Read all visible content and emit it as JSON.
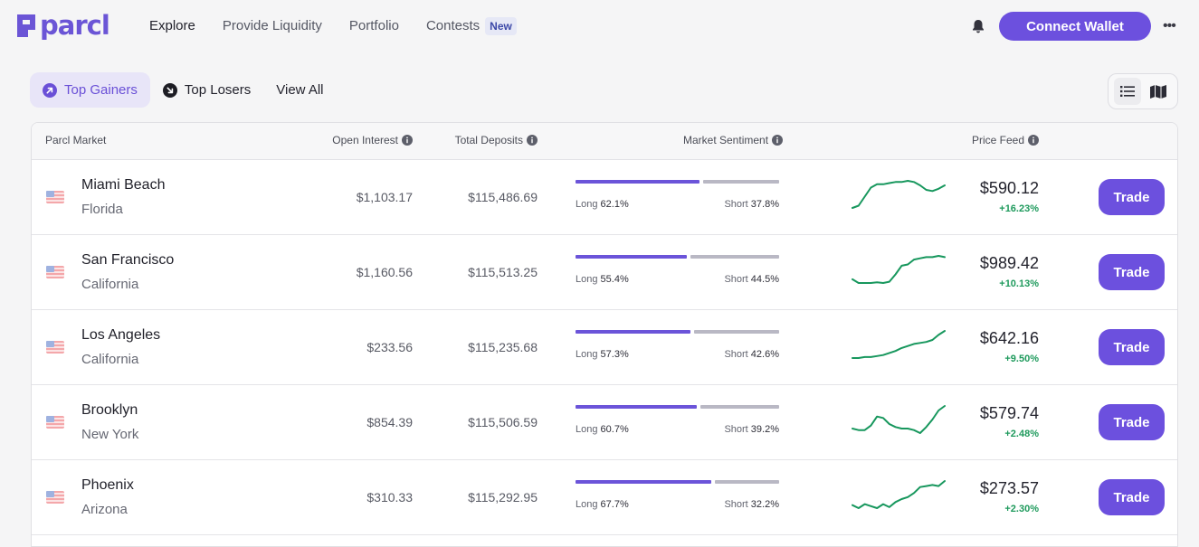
{
  "brand": {
    "name": "parcl",
    "accent": "#6c50de"
  },
  "nav": {
    "links": [
      "Explore",
      "Provide Liquidity",
      "Portfolio"
    ],
    "contests_label": "Contests",
    "contests_badge": "New",
    "connect_wallet": "Connect Wallet",
    "more_label": "•••"
  },
  "filters": {
    "top_gainers": "Top Gainers",
    "top_losers": "Top Losers",
    "view_all": "View All"
  },
  "table": {
    "headers": {
      "market": "Parcl Market",
      "open_interest": "Open Interest",
      "total_deposits": "Total Deposits",
      "sentiment": "Market Sentiment",
      "price_feed": "Price Feed"
    },
    "trade_label": "Trade",
    "long_prefix": "Long ",
    "short_prefix": "Short ",
    "rows": [
      {
        "city": "Miami Beach",
        "state": "Florida",
        "open_interest": "$1,103.17",
        "total_deposits": "$115,486.69",
        "long_pct": 62.1,
        "short_pct": 37.8,
        "long_label": "62.1%",
        "short_label": "37.8%",
        "price": "$590.12",
        "change": "+16.23%",
        "spark": [
          0,
          2,
          10,
          18,
          21,
          21,
          22,
          23,
          23,
          24,
          23,
          20,
          16,
          15,
          17,
          20
        ]
      },
      {
        "city": "San Francisco",
        "state": "California",
        "open_interest": "$1,160.56",
        "total_deposits": "$115,513.25",
        "long_pct": 55.4,
        "short_pct": 44.5,
        "long_label": "55.4%",
        "short_label": "44.5%",
        "price": "$989.42",
        "change": "+10.13%",
        "spark": [
          3,
          0,
          0,
          0,
          0.5,
          0,
          1,
          7,
          14,
          15,
          19,
          20,
          21,
          21,
          22,
          21
        ]
      },
      {
        "city": "Los Angeles",
        "state": "California",
        "open_interest": "$233.56",
        "total_deposits": "$115,235.68",
        "long_pct": 57.3,
        "short_pct": 42.6,
        "long_label": "57.3%",
        "short_label": "42.6%",
        "price": "$642.16",
        "change": "+9.50%",
        "spark": [
          0,
          0,
          1,
          1,
          2,
          3,
          5,
          7,
          10,
          12,
          14,
          15,
          16,
          18,
          23,
          27
        ]
      },
      {
        "city": "Brooklyn",
        "state": "New York",
        "open_interest": "$854.39",
        "total_deposits": "$115,506.59",
        "long_pct": 60.7,
        "short_pct": 39.2,
        "long_label": "60.7%",
        "short_label": "39.2%",
        "price": "$579.74",
        "change": "+2.48%",
        "spark": [
          8,
          7,
          7,
          10,
          16,
          15,
          11,
          9,
          8,
          8,
          7,
          5,
          9,
          14,
          20,
          23
        ]
      },
      {
        "city": "Phoenix",
        "state": "Arizona",
        "open_interest": "$310.33",
        "total_deposits": "$115,292.95",
        "long_pct": 67.7,
        "short_pct": 32.2,
        "long_label": "67.7%",
        "short_label": "32.2%",
        "price": "$273.57",
        "change": "+2.30%",
        "spark": [
          3,
          0,
          4,
          2,
          0,
          4,
          1,
          6,
          9,
          11,
          15,
          21,
          22,
          23,
          22,
          27
        ]
      }
    ]
  },
  "colors": {
    "positive": "#1e9a5c",
    "long_bar": "#6b54d9",
    "short_bar": "#b9b8c4",
    "spark": "#17975d"
  }
}
